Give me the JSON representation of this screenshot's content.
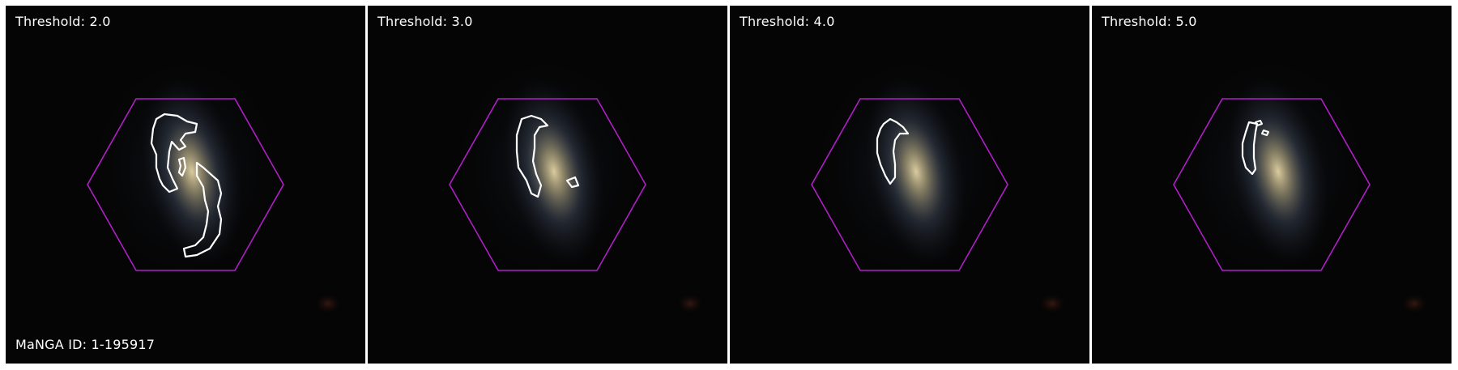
{
  "figure": {
    "manga_id_label": "MaNGA ID: 1-195917",
    "panels": [
      {
        "label": "Threshold: 2.0",
        "threshold": 2.0
      },
      {
        "label": "Threshold: 3.0",
        "threshold": 3.0
      },
      {
        "label": "Threshold: 4.0",
        "threshold": 4.0
      },
      {
        "label": "Threshold: 5.0",
        "threshold": 5.0
      }
    ]
  },
  "colors": {
    "background": "#050505",
    "hexagon": "#b01ec8",
    "contour": "#ffffff",
    "galaxy_core": "#d8c79a",
    "galaxy_outer": "#4a5a6a"
  }
}
